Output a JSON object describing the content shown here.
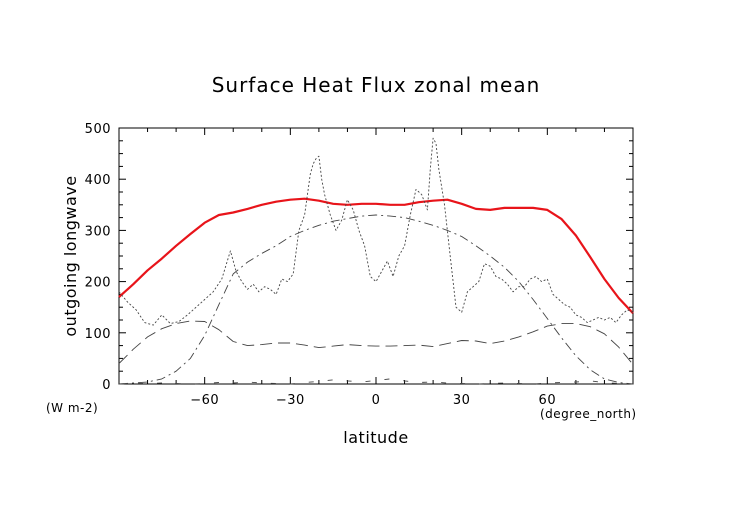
{
  "chart_data": {
    "type": "line",
    "title": "Surface Heat Flux zonal mean",
    "xlabel": "latitude",
    "ylabel": "outgoing longwave",
    "x_unit": "(degree_north)",
    "y_unit": "(W m-2)",
    "xlim": [
      -90,
      90
    ],
    "ylim": [
      0,
      500
    ],
    "x_ticks": [
      -60,
      -30,
      0,
      30,
      60
    ],
    "y_ticks": [
      0,
      100,
      200,
      300,
      400,
      500
    ],
    "series_colors": [
      "#e8141a",
      "#444444",
      "#444444",
      "#444444",
      "#444444"
    ],
    "series": [
      {
        "style": "solid-red",
        "x": [
          -90,
          -85,
          -80,
          -75,
          -70,
          -65,
          -60,
          -55,
          -50,
          -45,
          -40,
          -35,
          -30,
          -25,
          -20,
          -15,
          -10,
          -5,
          0,
          5,
          10,
          15,
          20,
          25,
          30,
          35,
          40,
          45,
          50,
          55,
          60,
          65,
          70,
          75,
          80,
          85,
          90
        ],
        "y": [
          170,
          195,
          222,
          245,
          270,
          293,
          315,
          330,
          335,
          342,
          350,
          356,
          360,
          362,
          358,
          352,
          350,
          352,
          352,
          350,
          350,
          355,
          358,
          360,
          352,
          342,
          340,
          344,
          344,
          344,
          340,
          322,
          290,
          248,
          205,
          168,
          138
        ]
      },
      {
        "style": "dotted",
        "x": [
          -90,
          -87,
          -84,
          -81,
          -78,
          -75,
          -72,
          -69,
          -66,
          -63,
          -60,
          -57,
          -54,
          -51,
          -49,
          -47,
          -45,
          -43,
          -41,
          -39,
          -37,
          -35,
          -33,
          -31,
          -29,
          -27,
          -25,
          -23,
          -22,
          -21,
          -20,
          -19,
          -18,
          -16,
          -14,
          -12,
          -10,
          -8,
          -6,
          -4,
          -2,
          0,
          2,
          4,
          6,
          8,
          10,
          12,
          14,
          16,
          18,
          19,
          20,
          21,
          22,
          24,
          26,
          28,
          30,
          32,
          34,
          36,
          38,
          40,
          42,
          44,
          46,
          48,
          50,
          52,
          54,
          56,
          58,
          60,
          62,
          64,
          66,
          68,
          70,
          72,
          74,
          76,
          78,
          80,
          82,
          84,
          86,
          88,
          90
        ],
        "y": [
          180,
          160,
          145,
          120,
          115,
          135,
          118,
          122,
          135,
          150,
          165,
          180,
          205,
          260,
          220,
          200,
          185,
          195,
          180,
          190,
          185,
          175,
          205,
          200,
          215,
          300,
          330,
          410,
          430,
          440,
          445,
          400,
          370,
          330,
          300,
          320,
          360,
          340,
          300,
          270,
          210,
          200,
          220,
          240,
          210,
          250,
          270,
          330,
          380,
          370,
          340,
          420,
          480,
          470,
          420,
          350,
          250,
          150,
          140,
          180,
          190,
          200,
          235,
          230,
          210,
          205,
          195,
          180,
          190,
          190,
          205,
          210,
          200,
          205,
          175,
          165,
          155,
          150,
          135,
          130,
          120,
          125,
          130,
          125,
          130,
          120,
          135,
          145,
          140
        ]
      },
      {
        "style": "dash-dot",
        "x": [
          -90,
          -85,
          -80,
          -75,
          -70,
          -65,
          -60,
          -55,
          -50,
          -45,
          -40,
          -35,
          -30,
          -25,
          -20,
          -15,
          -10,
          -5,
          0,
          5,
          10,
          15,
          20,
          25,
          30,
          35,
          40,
          45,
          50,
          55,
          60,
          65,
          70,
          75,
          80,
          85,
          90
        ],
        "y": [
          0,
          2,
          4,
          10,
          25,
          50,
          95,
          155,
          215,
          238,
          255,
          270,
          288,
          300,
          310,
          318,
          323,
          328,
          330,
          328,
          325,
          318,
          310,
          300,
          288,
          270,
          250,
          228,
          200,
          165,
          128,
          90,
          55,
          28,
          10,
          3,
          0
        ]
      },
      {
        "style": "long-dash",
        "x": [
          -90,
          -85,
          -80,
          -75,
          -70,
          -65,
          -60,
          -55,
          -50,
          -45,
          -40,
          -35,
          -30,
          -25,
          -20,
          -15,
          -10,
          -5,
          0,
          5,
          10,
          15,
          20,
          25,
          30,
          35,
          40,
          45,
          50,
          55,
          60,
          65,
          70,
          75,
          80,
          85,
          90
        ],
        "y": [
          40,
          68,
          92,
          108,
          118,
          123,
          122,
          106,
          83,
          75,
          77,
          80,
          80,
          76,
          71,
          74,
          77,
          75,
          74,
          74,
          75,
          76,
          73,
          79,
          85,
          84,
          79,
          84,
          92,
          102,
          113,
          118,
          118,
          112,
          98,
          72,
          38
        ]
      },
      {
        "style": "sparse-dash",
        "x": [
          -90,
          -85,
          -80,
          -75,
          -70,
          -65,
          -60,
          -55,
          -50,
          -45,
          -40,
          -35,
          -30,
          -25,
          -20,
          -15,
          -10,
          -5,
          0,
          5,
          10,
          15,
          20,
          25,
          30,
          35,
          40,
          45,
          50,
          55,
          60,
          65,
          70,
          75,
          80,
          85,
          90
        ],
        "y": [
          0,
          1,
          1,
          2,
          1,
          0,
          1,
          3,
          2,
          4,
          2,
          1,
          0,
          3,
          5,
          8,
          6,
          4,
          7,
          10,
          6,
          3,
          4,
          2,
          1,
          0,
          1,
          2,
          1,
          0,
          2,
          3,
          4,
          6,
          3,
          1,
          0
        ]
      }
    ]
  }
}
